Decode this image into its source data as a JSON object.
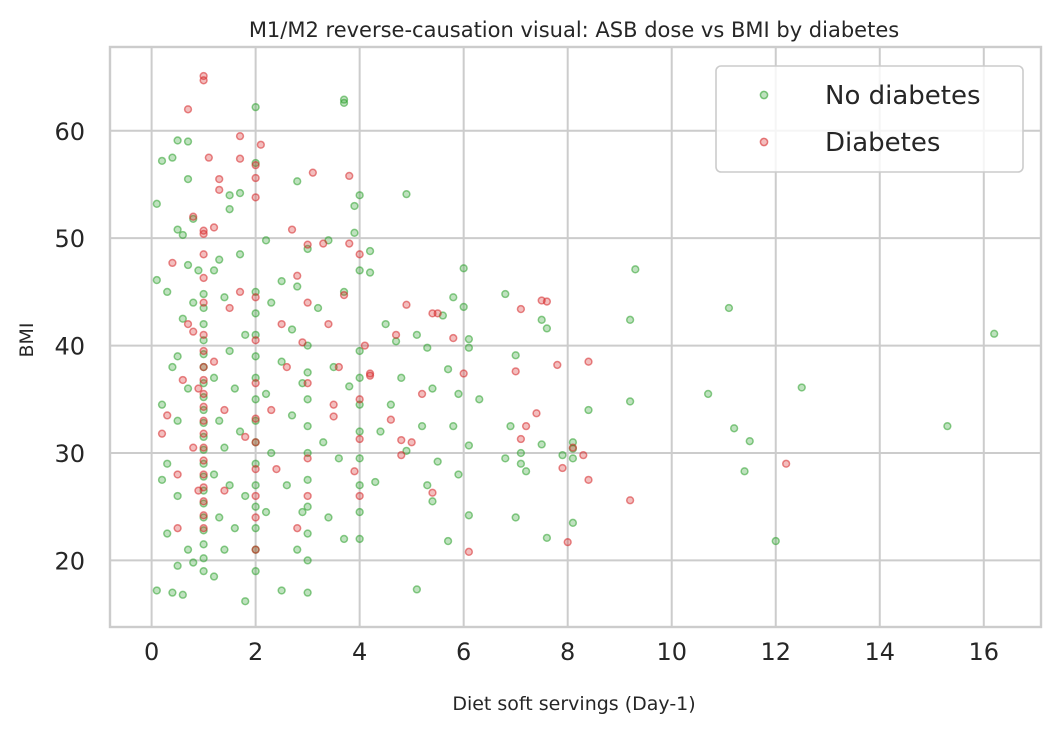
{
  "chart_data": {
    "type": "scatter",
    "title": "M1/M2 reverse-causation visual: ASB dose vs BMI by diabetes",
    "xlabel": "Diet soft servings (Day-1)",
    "ylabel": "BMI",
    "xlim": [
      -0.8,
      17.1
    ],
    "ylim": [
      13.8,
      67.8
    ],
    "xticks": [
      0,
      2,
      4,
      6,
      8,
      10,
      12,
      14,
      16
    ],
    "yticks": [
      20,
      30,
      40,
      50,
      60
    ],
    "xtick_labels": [
      "0",
      "2",
      "4",
      "6",
      "8",
      "10",
      "12",
      "14",
      "16"
    ],
    "ytick_labels": [
      "20",
      "30",
      "40",
      "50",
      "60"
    ],
    "grid": true,
    "legend_position": "top-right",
    "series": [
      {
        "name": "No diabetes",
        "color": "#2ca02c",
        "points": [
          [
            0.1,
            53.2
          ],
          [
            0.1,
            46.1
          ],
          [
            0.1,
            17.2
          ],
          [
            0.2,
            57.2
          ],
          [
            0.2,
            34.5
          ],
          [
            0.2,
            27.5
          ],
          [
            0.3,
            45.0
          ],
          [
            0.3,
            29.0
          ],
          [
            0.3,
            22.5
          ],
          [
            0.4,
            57.5
          ],
          [
            0.4,
            38.0
          ],
          [
            0.4,
            17.0
          ],
          [
            0.5,
            59.1
          ],
          [
            0.5,
            50.8
          ],
          [
            0.5,
            39.0
          ],
          [
            0.5,
            33.0
          ],
          [
            0.5,
            26.0
          ],
          [
            0.5,
            19.5
          ],
          [
            0.6,
            50.3
          ],
          [
            0.6,
            42.5
          ],
          [
            0.6,
            16.8
          ],
          [
            0.7,
            59.0
          ],
          [
            0.7,
            55.5
          ],
          [
            0.7,
            47.5
          ],
          [
            0.7,
            36.0
          ],
          [
            0.7,
            21.0
          ],
          [
            0.8,
            51.8
          ],
          [
            0.8,
            44.0
          ],
          [
            0.8,
            19.8
          ],
          [
            0.9,
            47.0
          ],
          [
            1.0,
            44.8
          ],
          [
            1.0,
            43.5
          ],
          [
            1.0,
            42.0
          ],
          [
            1.0,
            40.5
          ],
          [
            1.0,
            39.2
          ],
          [
            1.0,
            38.0
          ],
          [
            1.0,
            36.5
          ],
          [
            1.0,
            35.2
          ],
          [
            1.0,
            34.0
          ],
          [
            1.0,
            32.8
          ],
          [
            1.0,
            31.5
          ],
          [
            1.0,
            30.3
          ],
          [
            1.0,
            29.0
          ],
          [
            1.0,
            27.8
          ],
          [
            1.0,
            26.5
          ],
          [
            1.0,
            25.3
          ],
          [
            1.0,
            24.0
          ],
          [
            1.0,
            22.8
          ],
          [
            1.0,
            21.5
          ],
          [
            1.0,
            20.2
          ],
          [
            1.0,
            19.0
          ],
          [
            1.2,
            47.0
          ],
          [
            1.2,
            37.0
          ],
          [
            1.2,
            28.0
          ],
          [
            1.2,
            18.5
          ],
          [
            1.3,
            48.0
          ],
          [
            1.3,
            33.0
          ],
          [
            1.3,
            24.0
          ],
          [
            1.4,
            44.5
          ],
          [
            1.4,
            30.5
          ],
          [
            1.4,
            21.0
          ],
          [
            1.5,
            54.0
          ],
          [
            1.5,
            52.7
          ],
          [
            1.5,
            39.5
          ],
          [
            1.5,
            27.0
          ],
          [
            1.6,
            36.0
          ],
          [
            1.6,
            23.0
          ],
          [
            1.7,
            54.2
          ],
          [
            1.7,
            48.5
          ],
          [
            1.7,
            32.0
          ],
          [
            1.8,
            41.0
          ],
          [
            1.8,
            26.0
          ],
          [
            1.8,
            16.2
          ],
          [
            2.0,
            62.2
          ],
          [
            2.0,
            57.0
          ],
          [
            2.0,
            45.0
          ],
          [
            2.0,
            43.0
          ],
          [
            2.0,
            41.0
          ],
          [
            2.0,
            39.0
          ],
          [
            2.0,
            37.0
          ],
          [
            2.0,
            35.0
          ],
          [
            2.0,
            33.0
          ],
          [
            2.0,
            31.0
          ],
          [
            2.0,
            29.0
          ],
          [
            2.0,
            27.0
          ],
          [
            2.0,
            25.0
          ],
          [
            2.0,
            23.0
          ],
          [
            2.0,
            21.0
          ],
          [
            2.0,
            19.0
          ],
          [
            2.2,
            49.8
          ],
          [
            2.2,
            35.5
          ],
          [
            2.2,
            24.5
          ],
          [
            2.3,
            44.0
          ],
          [
            2.3,
            30.0
          ],
          [
            2.5,
            46.0
          ],
          [
            2.5,
            38.5
          ],
          [
            2.5,
            17.2
          ],
          [
            2.6,
            27.0
          ],
          [
            2.7,
            41.5
          ],
          [
            2.7,
            33.5
          ],
          [
            2.8,
            55.3
          ],
          [
            2.8,
            45.5
          ],
          [
            2.8,
            21.0
          ],
          [
            2.9,
            36.5
          ],
          [
            2.9,
            24.5
          ],
          [
            3.0,
            49.0
          ],
          [
            3.0,
            40.0
          ],
          [
            3.0,
            37.5
          ],
          [
            3.0,
            35.0
          ],
          [
            3.0,
            32.5
          ],
          [
            3.0,
            30.0
          ],
          [
            3.0,
            27.5
          ],
          [
            3.0,
            25.0
          ],
          [
            3.0,
            22.5
          ],
          [
            3.0,
            20.0
          ],
          [
            3.0,
            17.0
          ],
          [
            3.2,
            43.5
          ],
          [
            3.3,
            31.0
          ],
          [
            3.4,
            49.8
          ],
          [
            3.4,
            24.0
          ],
          [
            3.5,
            38.0
          ],
          [
            3.6,
            29.5
          ],
          [
            3.7,
            62.9
          ],
          [
            3.7,
            62.6
          ],
          [
            3.7,
            45.0
          ],
          [
            3.7,
            22.0
          ],
          [
            3.8,
            36.2
          ],
          [
            3.9,
            53.0
          ],
          [
            3.9,
            50.5
          ],
          [
            4.0,
            54.0
          ],
          [
            4.0,
            47.0
          ],
          [
            4.0,
            39.5
          ],
          [
            4.0,
            37.0
          ],
          [
            4.0,
            34.5
          ],
          [
            4.0,
            32.0
          ],
          [
            4.0,
            29.5
          ],
          [
            4.0,
            27.0
          ],
          [
            4.0,
            24.5
          ],
          [
            4.0,
            22.0
          ],
          [
            4.2,
            48.8
          ],
          [
            4.2,
            46.8
          ],
          [
            4.3,
            27.3
          ],
          [
            4.4,
            32.0
          ],
          [
            4.5,
            42.0
          ],
          [
            4.6,
            34.5
          ],
          [
            4.7,
            40.4
          ],
          [
            4.8,
            37.0
          ],
          [
            4.9,
            54.1
          ],
          [
            4.9,
            30.2
          ],
          [
            5.1,
            41.0
          ],
          [
            5.1,
            17.3
          ],
          [
            5.2,
            32.5
          ],
          [
            5.3,
            39.8
          ],
          [
            5.3,
            27.0
          ],
          [
            5.4,
            25.5
          ],
          [
            5.4,
            36.0
          ],
          [
            5.5,
            29.2
          ],
          [
            5.6,
            42.8
          ],
          [
            5.7,
            37.8
          ],
          [
            5.7,
            21.8
          ],
          [
            5.8,
            44.5
          ],
          [
            5.8,
            32.5
          ],
          [
            5.9,
            28.0
          ],
          [
            5.9,
            35.5
          ],
          [
            6.0,
            47.2
          ],
          [
            6.0,
            43.6
          ],
          [
            6.1,
            40.6
          ],
          [
            6.1,
            39.8
          ],
          [
            6.1,
            24.2
          ],
          [
            6.1,
            30.7
          ],
          [
            6.3,
            35.0
          ],
          [
            6.8,
            44.8
          ],
          [
            6.8,
            29.5
          ],
          [
            6.9,
            32.5
          ],
          [
            7.0,
            39.1
          ],
          [
            7.0,
            24.0
          ],
          [
            7.1,
            30.0
          ],
          [
            7.1,
            29.0
          ],
          [
            7.2,
            28.3
          ],
          [
            7.5,
            42.4
          ],
          [
            7.5,
            30.8
          ],
          [
            7.6,
            41.6
          ],
          [
            7.6,
            22.1
          ],
          [
            7.9,
            29.8
          ],
          [
            8.1,
            31.0
          ],
          [
            8.1,
            29.5
          ],
          [
            8.1,
            30.4
          ],
          [
            8.1,
            23.5
          ],
          [
            8.4,
            34.0
          ],
          [
            9.2,
            42.4
          ],
          [
            9.2,
            34.8
          ],
          [
            9.3,
            47.1
          ],
          [
            10.7,
            35.5
          ],
          [
            11.1,
            43.5
          ],
          [
            11.2,
            32.3
          ],
          [
            11.4,
            28.3
          ],
          [
            11.5,
            31.1
          ],
          [
            12.0,
            21.8
          ],
          [
            12.5,
            36.1
          ],
          [
            15.3,
            32.5
          ],
          [
            16.2,
            41.1
          ]
        ]
      },
      {
        "name": "Diabetes",
        "color": "#d62728",
        "points": [
          [
            0.2,
            31.8
          ],
          [
            0.3,
            33.5
          ],
          [
            0.4,
            47.7
          ],
          [
            0.5,
            28.0
          ],
          [
            0.5,
            23.0
          ],
          [
            0.6,
            36.8
          ],
          [
            0.7,
            62.0
          ],
          [
            0.7,
            42.0
          ],
          [
            0.8,
            41.3
          ],
          [
            0.8,
            52.0
          ],
          [
            0.8,
            30.5
          ],
          [
            0.9,
            36.0
          ],
          [
            0.9,
            26.5
          ],
          [
            1.0,
            65.1
          ],
          [
            1.0,
            64.7
          ],
          [
            1.0,
            50.7
          ],
          [
            1.0,
            50.4
          ],
          [
            1.0,
            48.5
          ],
          [
            1.0,
            46.3
          ],
          [
            1.0,
            44.0
          ],
          [
            1.0,
            41.0
          ],
          [
            1.0,
            39.5
          ],
          [
            1.0,
            38.0
          ],
          [
            1.0,
            36.8
          ],
          [
            1.0,
            35.5
          ],
          [
            1.0,
            34.3
          ],
          [
            1.0,
            33.0
          ],
          [
            1.0,
            31.8
          ],
          [
            1.0,
            30.5
          ],
          [
            1.0,
            29.3
          ],
          [
            1.0,
            28.0
          ],
          [
            1.0,
            26.8
          ],
          [
            1.0,
            25.5
          ],
          [
            1.0,
            24.2
          ],
          [
            1.0,
            23.0
          ],
          [
            1.1,
            57.5
          ],
          [
            1.2,
            51.0
          ],
          [
            1.2,
            38.5
          ],
          [
            1.3,
            55.5
          ],
          [
            1.3,
            54.5
          ],
          [
            1.4,
            34.0
          ],
          [
            1.4,
            26.5
          ],
          [
            1.5,
            43.5
          ],
          [
            1.7,
            59.5
          ],
          [
            1.7,
            57.4
          ],
          [
            1.7,
            45.0
          ],
          [
            1.8,
            31.5
          ],
          [
            2.0,
            56.8
          ],
          [
            2.0,
            55.6
          ],
          [
            2.0,
            53.8
          ],
          [
            2.0,
            44.5
          ],
          [
            2.0,
            40.5
          ],
          [
            2.0,
            36.5
          ],
          [
            2.0,
            33.2
          ],
          [
            2.0,
            31.0
          ],
          [
            2.0,
            28.5
          ],
          [
            2.0,
            26.0
          ],
          [
            2.0,
            24.0
          ],
          [
            2.0,
            21.0
          ],
          [
            2.1,
            58.7
          ],
          [
            2.3,
            34.0
          ],
          [
            2.4,
            28.5
          ],
          [
            2.5,
            42.0
          ],
          [
            2.6,
            38.0
          ],
          [
            2.7,
            50.8
          ],
          [
            2.8,
            46.5
          ],
          [
            2.8,
            23.0
          ],
          [
            2.9,
            40.3
          ],
          [
            3.0,
            49.4
          ],
          [
            3.0,
            44.0
          ],
          [
            3.0,
            36.5
          ],
          [
            3.0,
            29.5
          ],
          [
            3.0,
            26.0
          ],
          [
            3.1,
            56.1
          ],
          [
            3.3,
            49.5
          ],
          [
            3.4,
            42.0
          ],
          [
            3.5,
            34.5
          ],
          [
            3.5,
            33.4
          ],
          [
            3.6,
            38.0
          ],
          [
            3.7,
            44.7
          ],
          [
            3.8,
            49.5
          ],
          [
            3.8,
            55.8
          ],
          [
            3.9,
            28.3
          ],
          [
            4.0,
            48.5
          ],
          [
            4.0,
            35.0
          ],
          [
            4.0,
            31.3
          ],
          [
            4.0,
            26.0
          ],
          [
            4.1,
            40.0
          ],
          [
            4.2,
            37.4
          ],
          [
            4.2,
            37.2
          ],
          [
            4.6,
            33.1
          ],
          [
            4.7,
            41.0
          ],
          [
            4.8,
            31.2
          ],
          [
            4.8,
            29.8
          ],
          [
            4.9,
            43.8
          ],
          [
            5.0,
            31.0
          ],
          [
            5.2,
            35.5
          ],
          [
            5.4,
            26.3
          ],
          [
            5.4,
            43.0
          ],
          [
            5.5,
            43.0
          ],
          [
            5.8,
            40.7
          ],
          [
            6.0,
            37.4
          ],
          [
            6.1,
            20.8
          ],
          [
            7.0,
            37.6
          ],
          [
            7.1,
            31.3
          ],
          [
            7.1,
            43.4
          ],
          [
            7.2,
            32.5
          ],
          [
            7.4,
            33.7
          ],
          [
            7.5,
            44.2
          ],
          [
            7.6,
            44.1
          ],
          [
            7.8,
            38.2
          ],
          [
            7.9,
            28.6
          ],
          [
            8.0,
            21.7
          ],
          [
            8.1,
            30.5
          ],
          [
            8.3,
            29.8
          ],
          [
            8.4,
            38.5
          ],
          [
            8.4,
            27.5
          ],
          [
            9.2,
            25.6
          ],
          [
            12.2,
            29.0
          ]
        ]
      }
    ]
  }
}
